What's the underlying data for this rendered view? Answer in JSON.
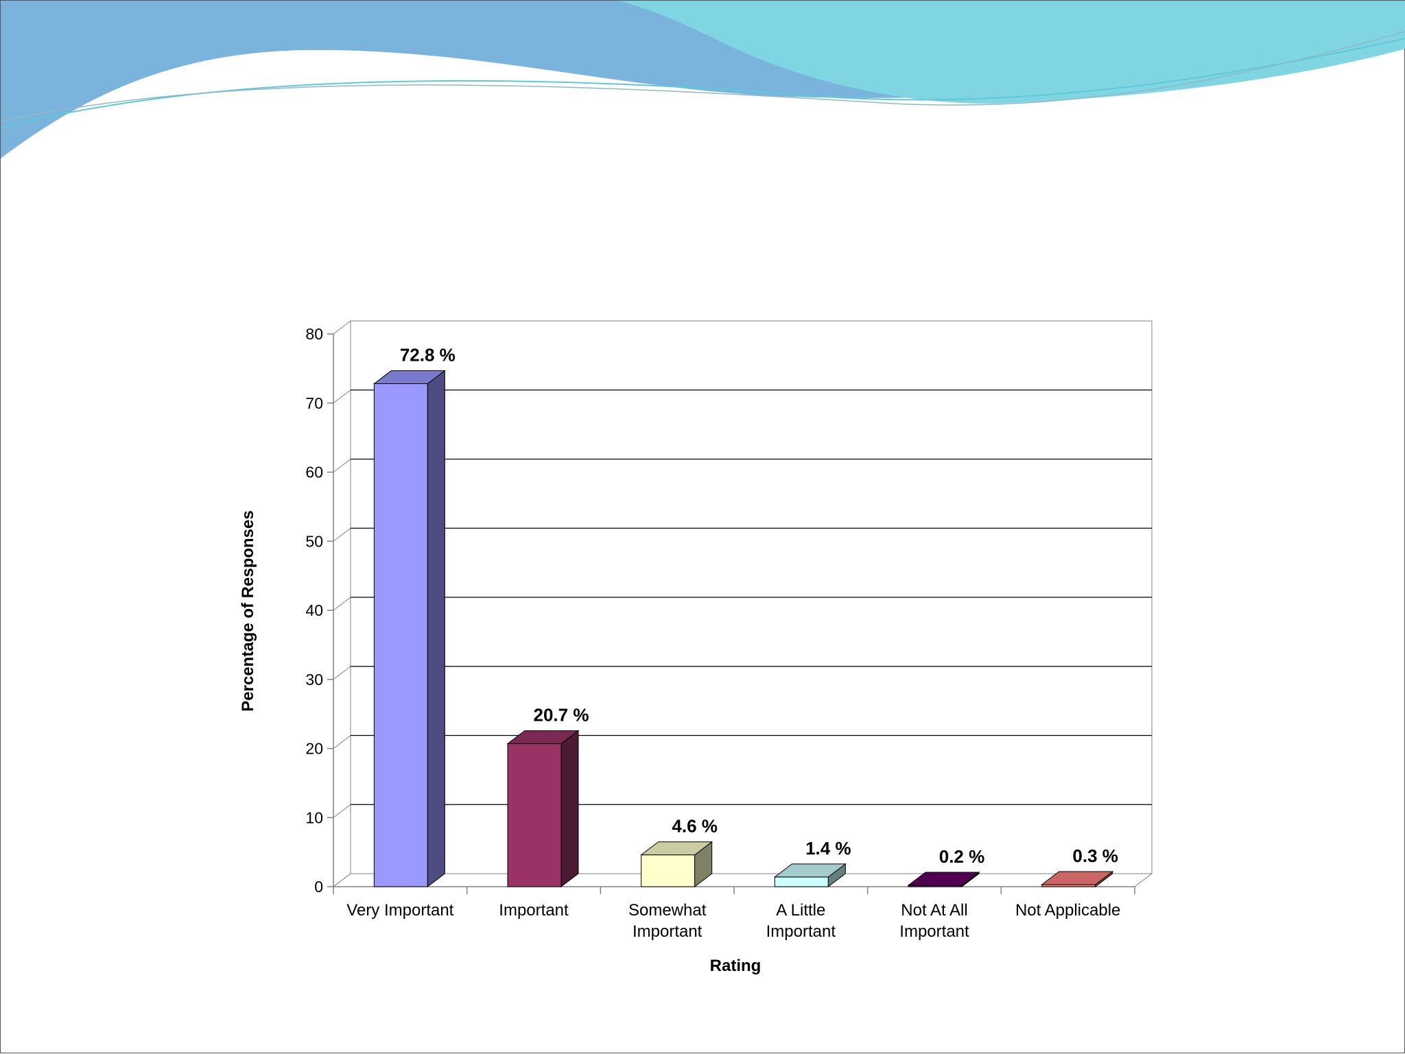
{
  "theme": {
    "wave_colors": [
      "#7ab4dc",
      "#7fd6e2",
      "#5fc8d8"
    ],
    "wall_color": "#ffffff",
    "gridline_color": "#000000"
  },
  "chart_data": {
    "type": "bar",
    "style": "3d-column",
    "categories": [
      [
        "Very Important"
      ],
      [
        "Important"
      ],
      [
        "Somewhat",
        "Important"
      ],
      [
        "A Little",
        "Important"
      ],
      [
        "Not At All",
        "Important"
      ],
      [
        "Not Applicable"
      ]
    ],
    "values": [
      72.8,
      20.7,
      4.6,
      1.4,
      0.2,
      0.3
    ],
    "data_labels": [
      "72.8 %",
      "20.7 %",
      "4.6 %",
      "1.4 %",
      "0.2 %",
      "0.3 %"
    ],
    "bar_colors": [
      {
        "front": "#9999ff",
        "top": "#7a7acc",
        "side": "#4c4c80"
      },
      {
        "front": "#993366",
        "top": "#7a2952",
        "side": "#4d1a33"
      },
      {
        "front": "#ffffcc",
        "top": "#cccca3",
        "side": "#808066"
      },
      {
        "front": "#ccffff",
        "top": "#a3cccc",
        "side": "#668080"
      },
      {
        "front": "#660066",
        "top": "#520052",
        "side": "#330033"
      },
      {
        "front": "#ff8080",
        "top": "#cc6666",
        "side": "#804040"
      }
    ],
    "ylim": [
      0,
      80
    ],
    "yticks": [
      0,
      10,
      20,
      30,
      40,
      50,
      60,
      70,
      80
    ],
    "xlabel": "Rating",
    "ylabel": "Percentage of Responses",
    "grid": true,
    "legend": "none"
  }
}
